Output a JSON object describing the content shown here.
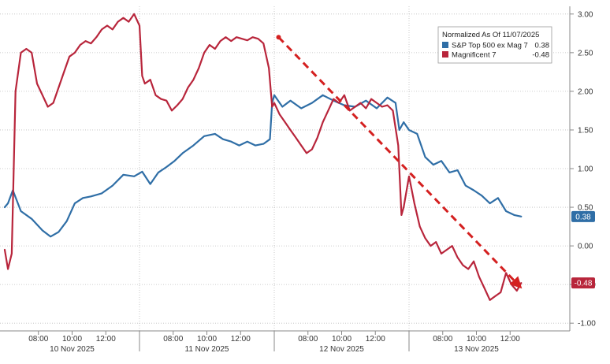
{
  "chart_data": {
    "type": "line",
    "title": "",
    "xlabel": "",
    "ylabel": "",
    "ylim": [
      -1.1,
      3.1
    ],
    "y_ticks": [
      3.0,
      2.5,
      2.0,
      1.5,
      1.0,
      0.5,
      0.0,
      -0.5,
      -1.0
    ],
    "y_tick_labels": [
      "3.00",
      "2.50",
      "2.00",
      "1.50",
      "1.00",
      "0.50",
      "0.00",
      "-0.50",
      "-1.00"
    ],
    "y_axis_side": "right",
    "grid": "dotted",
    "legend_position": "top-right",
    "legend_title": "Normalized As Of 11/07/2025",
    "days": [
      {
        "label": "10 Nov 2025",
        "times": [
          "08:00",
          "10:00",
          "12:00"
        ]
      },
      {
        "label": "11 Nov 2025",
        "times": [
          "08:00",
          "10:00",
          "12:00"
        ]
      },
      {
        "label": "12 Nov 2025",
        "times": [
          "08:00",
          "10:00",
          "12:00"
        ]
      },
      {
        "label": "13 Nov 2025",
        "times": [
          "08:00",
          "10:00",
          "12:00"
        ]
      }
    ],
    "x_index_range": [
      0,
      100
    ],
    "series": [
      {
        "name": "S&P Top 500 ex Mag 7",
        "last_value_label": "0.38",
        "color": "#2f6ea6",
        "x": [
          0,
          0.6,
          1.5,
          3,
          5,
          7,
          8.5,
          10,
          11.5,
          13,
          14.5,
          16,
          18,
          20,
          22,
          24,
          25.5,
          27,
          28.5,
          30,
          31.5,
          33,
          35,
          37,
          39,
          40.5,
          42,
          43.5,
          45,
          46.5,
          48,
          49.2,
          49.6,
          50,
          51.5,
          53,
          55,
          57,
          59,
          61,
          63,
          65,
          67,
          69,
          71,
          72.5,
          73.2,
          74,
          75,
          76.5,
          78,
          79.5,
          81,
          82.5,
          84,
          85.5,
          87,
          88.5,
          90,
          91.5,
          93,
          94.5,
          95.8
        ],
        "values": [
          0.5,
          0.55,
          0.72,
          0.45,
          0.35,
          0.2,
          0.12,
          0.18,
          0.32,
          0.55,
          0.62,
          0.64,
          0.68,
          0.78,
          0.92,
          0.9,
          0.96,
          0.8,
          0.95,
          1.02,
          1.1,
          1.2,
          1.3,
          1.42,
          1.45,
          1.38,
          1.35,
          1.3,
          1.35,
          1.3,
          1.32,
          1.38,
          1.85,
          1.95,
          1.8,
          1.88,
          1.78,
          1.85,
          1.95,
          1.88,
          1.82,
          1.8,
          1.88,
          1.78,
          1.92,
          1.85,
          1.5,
          1.6,
          1.5,
          1.45,
          1.15,
          1.05,
          1.1,
          0.95,
          0.98,
          0.78,
          0.72,
          0.65,
          0.55,
          0.62,
          0.45,
          0.4,
          0.38
        ]
      },
      {
        "name": "Magnificent 7",
        "last_value_label": "-0.48",
        "color": "#b8253b",
        "x": [
          0,
          0.6,
          1.3,
          2,
          3,
          4,
          5,
          6,
          7,
          8,
          9,
          10,
          11,
          12,
          13,
          14,
          15,
          16,
          17,
          18,
          19,
          20,
          21,
          22,
          23,
          24,
          25,
          25.5,
          26,
          27,
          28,
          29,
          30,
          31,
          32,
          33,
          34,
          35,
          36,
          37,
          38,
          39,
          40,
          41,
          42,
          43,
          44,
          45,
          46,
          47,
          48,
          49,
          49.6,
          50,
          51,
          52,
          53,
          54,
          55,
          56,
          57,
          58,
          59,
          60,
          61,
          62,
          63,
          64,
          65,
          66,
          67,
          68,
          69,
          70,
          71,
          72,
          73,
          73.6,
          74,
          75,
          76,
          77,
          78,
          79,
          80,
          81,
          82,
          83,
          84,
          85,
          86,
          87,
          88,
          89,
          90,
          91,
          92,
          93,
          94,
          95,
          95.8
        ],
        "values": [
          -0.05,
          -0.3,
          -0.1,
          2.0,
          2.5,
          2.55,
          2.5,
          2.1,
          1.95,
          1.8,
          1.85,
          2.05,
          2.25,
          2.45,
          2.5,
          2.6,
          2.65,
          2.62,
          2.7,
          2.8,
          2.85,
          2.8,
          2.9,
          2.95,
          2.9,
          3.0,
          2.85,
          2.2,
          2.1,
          2.15,
          1.95,
          1.9,
          1.88,
          1.75,
          1.82,
          1.9,
          2.05,
          2.15,
          2.3,
          2.5,
          2.6,
          2.55,
          2.65,
          2.7,
          2.65,
          2.7,
          2.68,
          2.66,
          2.7,
          2.68,
          2.62,
          2.3,
          1.8,
          1.85,
          1.7,
          1.6,
          1.5,
          1.4,
          1.3,
          1.2,
          1.25,
          1.4,
          1.6,
          1.75,
          1.9,
          1.85,
          1.95,
          1.75,
          1.8,
          1.85,
          1.78,
          1.9,
          1.85,
          1.8,
          1.82,
          1.75,
          1.3,
          0.4,
          0.5,
          0.9,
          0.55,
          0.25,
          0.1,
          0.0,
          0.05,
          -0.1,
          -0.05,
          0.0,
          -0.15,
          -0.25,
          -0.3,
          -0.2,
          -0.4,
          -0.55,
          -0.7,
          -0.65,
          -0.6,
          -0.35,
          -0.5,
          -0.58,
          -0.48
        ]
      }
    ],
    "annotation": {
      "type": "dashed-arrow",
      "color": "#d42020",
      "from": {
        "x": 50.8,
        "y": 2.7
      },
      "to": {
        "x": 95.5,
        "y": -0.52
      }
    }
  }
}
